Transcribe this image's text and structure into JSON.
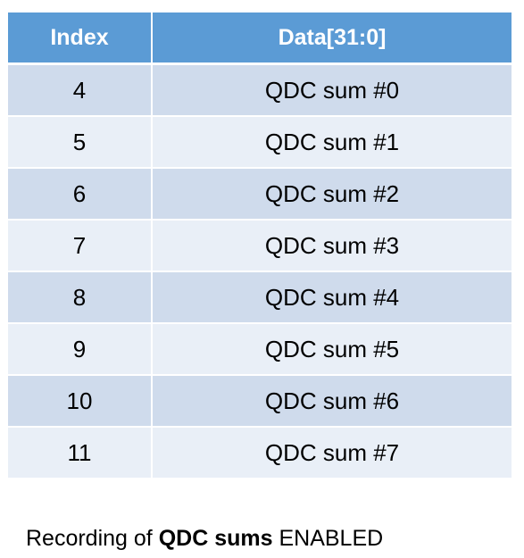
{
  "table": {
    "headers": {
      "index": "Index",
      "data": "Data[31:0]"
    },
    "rows": [
      {
        "index": "4",
        "data": "QDC sum #0"
      },
      {
        "index": "5",
        "data": "QDC sum #1"
      },
      {
        "index": "6",
        "data": "QDC sum #2"
      },
      {
        "index": "7",
        "data": "QDC sum #3"
      },
      {
        "index": "8",
        "data": "QDC sum #4"
      },
      {
        "index": "9",
        "data": "QDC sum #5"
      },
      {
        "index": "10",
        "data": "QDC sum #6"
      },
      {
        "index": "11",
        "data": "QDC sum #7"
      }
    ]
  },
  "caption": {
    "prefix": "Recording of ",
    "emphasis": "QDC sums",
    "suffix": " ENABLED"
  },
  "colors": {
    "header_bg": "#5b9bd5",
    "row_odd_bg": "#cfdbec",
    "row_even_bg": "#e9eff7"
  }
}
